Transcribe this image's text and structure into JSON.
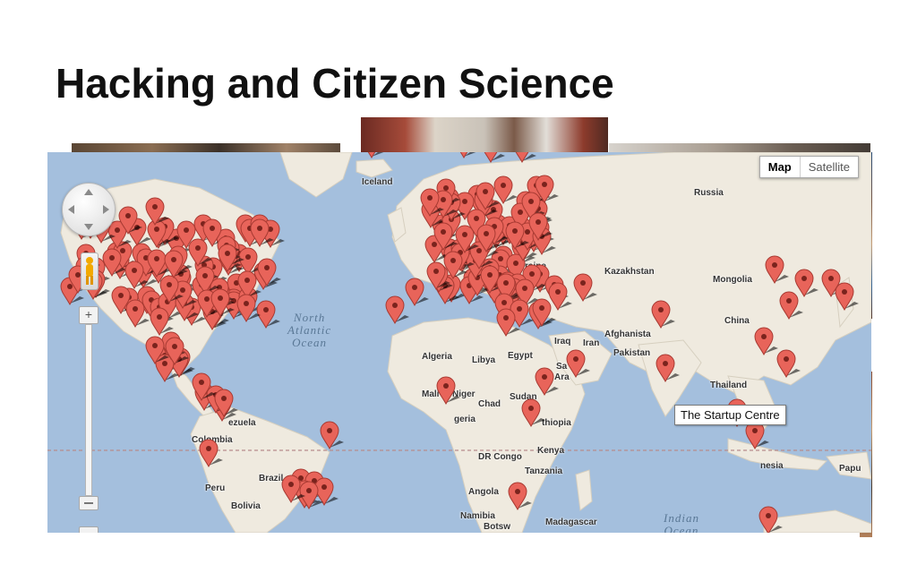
{
  "slide": {
    "title": "Hacking and Citizen Science"
  },
  "map": {
    "type_control": {
      "map_label": "Map",
      "satellite_label": "Satellite",
      "selected": "Map"
    },
    "zoom": {
      "plus_symbol": "+"
    },
    "tooltip": "The Startup Centre",
    "ocean_labels": {
      "north_atlantic": "North\nAtlantic\nOcean",
      "indian": "Indian\nOcean"
    },
    "place_labels": {
      "iceland": "Iceland",
      "russia": "Russia",
      "kazakhstan": "Kazakhstan",
      "mongolia": "Mongolia",
      "china": "China",
      "ukraine": "raine",
      "iraq": "Iraq",
      "iran": "Iran",
      "afghanistan": "Afghanista",
      "pakistan": "Pakistan",
      "algeria": "Algeria",
      "libya": "Libya",
      "egypt": "Egypt",
      "saudi1": "Sa",
      "saudi2": "Ara",
      "mali": "Mali",
      "niger": "Niger",
      "nigeria": "geria",
      "chad": "Chad",
      "sudan": "Sudan",
      "ethiopia": "thiopia",
      "kenya": "Kenya",
      "dr_congo": "DR Congo",
      "tanzania": "Tanzania",
      "angola": "Angola",
      "namibia": "Namibia",
      "botswana": "Botsw",
      "madagascar": "Madagascar",
      "thailand": "Thailand",
      "indonesia": "nesia",
      "papua": "Papu",
      "venezuela": "ezuela",
      "colombia": "Colombia",
      "peru": "Peru",
      "brazil": "Brazil",
      "bolivia": "Bolivia"
    },
    "colors": {
      "ocean": "#a4bfdd",
      "land": "#efeadf",
      "pin": "#e8645a",
      "pin_outline": "#a83a32"
    }
  }
}
